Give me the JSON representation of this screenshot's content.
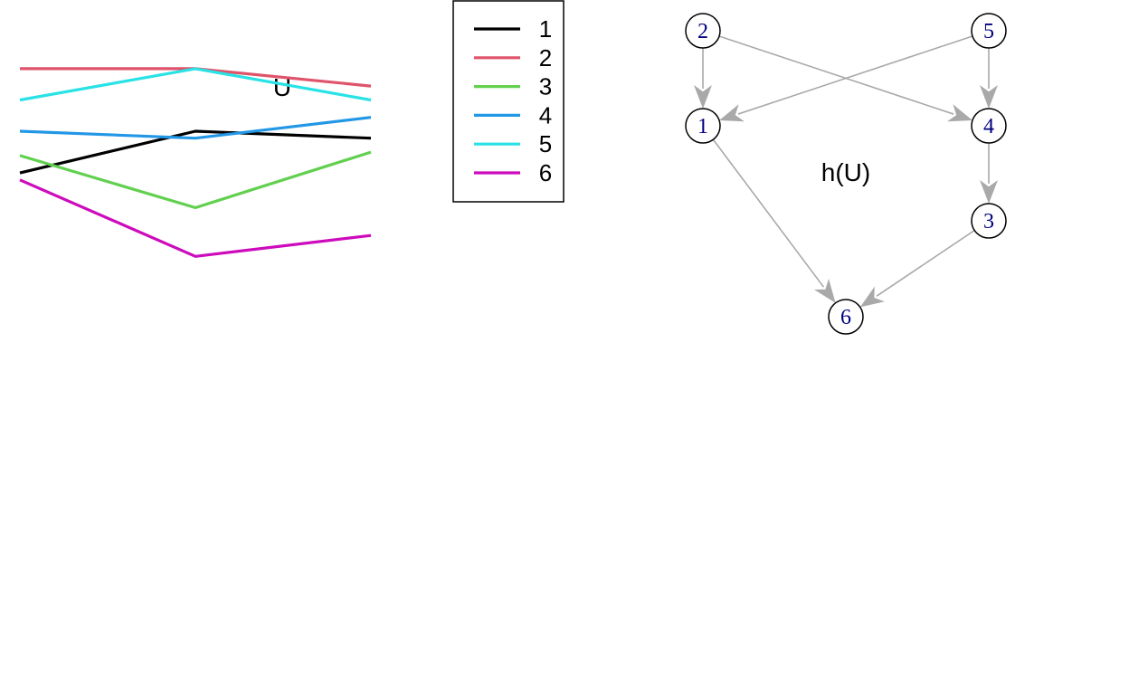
{
  "left_panel": {
    "title": "U",
    "chart_data": {
      "type": "line",
      "title": "U",
      "x": [
        1,
        2,
        3
      ],
      "xlabel": "",
      "ylabel": "",
      "axes_shown": false,
      "grid": false,
      "series": [
        {
          "name": "1",
          "color": "#000000",
          "values": [
            0.32,
            0.44,
            0.42
          ]
        },
        {
          "name": "2",
          "color": "#DF536B",
          "values": [
            0.62,
            0.62,
            0.57
          ]
        },
        {
          "name": "3",
          "color": "#61D04F",
          "values": [
            0.37,
            0.22,
            0.38
          ]
        },
        {
          "name": "4",
          "color": "#2297E6",
          "values": [
            0.44,
            0.42,
            0.48
          ]
        },
        {
          "name": "5",
          "color": "#28E2E5",
          "values": [
            0.53,
            0.62,
            0.53
          ]
        },
        {
          "name": "6",
          "color": "#CD0BBC",
          "values": [
            0.3,
            0.08,
            0.14
          ]
        }
      ],
      "ylim": [
        0,
        0.75
      ],
      "legend_position": "right"
    }
  },
  "legend": {
    "entries": [
      {
        "label": "1",
        "color": "#000000"
      },
      {
        "label": "2",
        "color": "#DF536B"
      },
      {
        "label": "3",
        "color": "#61D04F"
      },
      {
        "label": "4",
        "color": "#2297E6"
      },
      {
        "label": "5",
        "color": "#28E2E5"
      },
      {
        "label": "6",
        "color": "#CD0BBC"
      }
    ]
  },
  "right_panel": {
    "title": "h(U)",
    "graph": {
      "node_label_color": "#000080",
      "edge_color": "#A9A9A9",
      "nodes": [
        {
          "id": "2",
          "label": "2"
        },
        {
          "id": "5",
          "label": "5"
        },
        {
          "id": "1",
          "label": "1"
        },
        {
          "id": "4",
          "label": "4"
        },
        {
          "id": "3",
          "label": "3"
        },
        {
          "id": "6",
          "label": "6"
        }
      ],
      "edges": [
        {
          "from": "2",
          "to": "1"
        },
        {
          "from": "2",
          "to": "4"
        },
        {
          "from": "5",
          "to": "1"
        },
        {
          "from": "5",
          "to": "4"
        },
        {
          "from": "4",
          "to": "3"
        },
        {
          "from": "1",
          "to": "6"
        },
        {
          "from": "3",
          "to": "6"
        }
      ]
    }
  }
}
